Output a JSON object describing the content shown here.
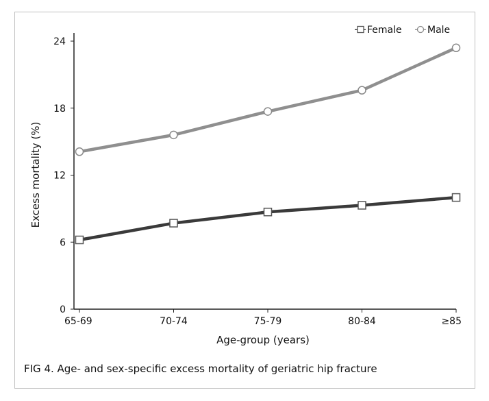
{
  "caption": "FIG 4. Age- and sex-specific excess mortality of geriatric hip fracture",
  "colors": {
    "female_line": "#3a3a3a",
    "male_line": "#8f8f8f",
    "axis": "#222222",
    "frame": "#bfbfbf"
  },
  "chart_data": {
    "type": "line",
    "title": "",
    "xlabel": "Age-group (years)",
    "ylabel": "Excess mortality (%)",
    "categories": [
      "65-69",
      "70-74",
      "75-79",
      "80-84",
      "≥85"
    ],
    "ylim": [
      0,
      24
    ],
    "yticks": [
      0,
      6,
      12,
      18,
      24
    ],
    "grid": false,
    "legend_position": "top-right",
    "series": [
      {
        "name": "Female",
        "marker": "square",
        "values": [
          6.2,
          7.7,
          8.7,
          9.3,
          10.0
        ]
      },
      {
        "name": "Male",
        "marker": "circle",
        "values": [
          14.1,
          15.6,
          17.7,
          19.6,
          23.4
        ]
      }
    ]
  }
}
